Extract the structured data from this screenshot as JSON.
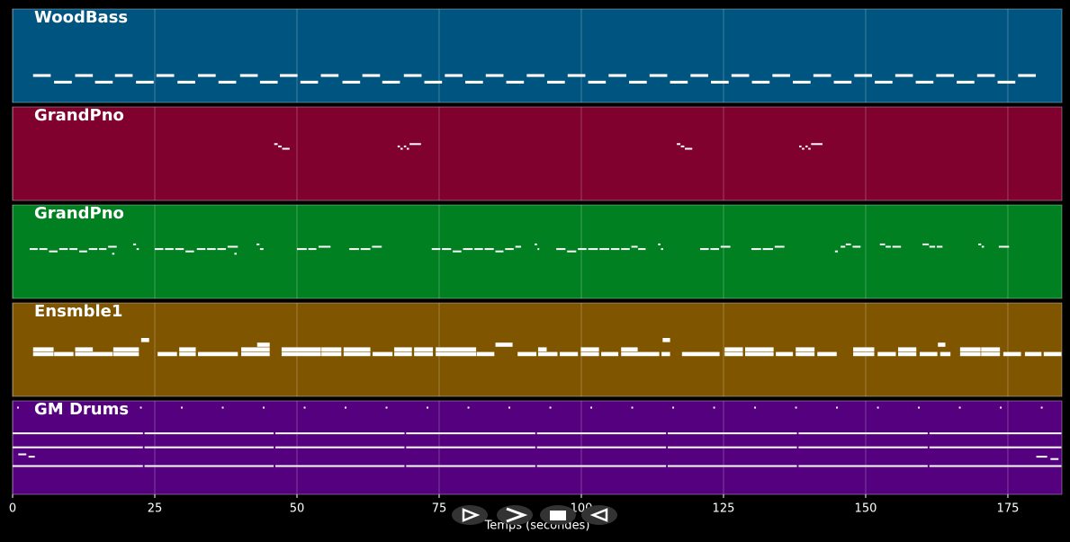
{
  "chart_data": {
    "type": "pianoroll",
    "xlabel": "Temps (secondes)",
    "xlim": [
      0,
      184.5
    ],
    "xticks": [
      0,
      25,
      50,
      75,
      100,
      125,
      150,
      175
    ],
    "grid": true,
    "tracks": [
      {
        "name": "WoodBass",
        "color": "#005580",
        "ylim": [
          36,
          64
        ],
        "start": [
          3.6,
          7.3,
          11,
          14.5,
          18,
          21.7,
          25.3,
          29,
          32.6,
          36.2,
          40,
          43.5,
          47,
          50.6,
          54.2,
          58,
          61.5,
          65,
          68.8,
          72.4,
          76,
          79.6,
          83.2,
          86.8,
          90.4,
          94,
          97.6,
          101.2,
          104.8,
          108.4,
          112,
          115.6,
          119.2,
          122.8,
          126.4,
          130,
          133.6,
          137.2,
          140.8,
          144.4,
          148,
          151.6,
          155.2,
          158.8,
          162.4,
          166,
          169.6,
          173.2,
          176.8
        ],
        "end": [
          6.8,
          10.5,
          14.2,
          17.7,
          21.2,
          24.9,
          28.5,
          32.2,
          35.8,
          39.4,
          43.2,
          46.7,
          50.2,
          53.8,
          57.4,
          61.2,
          64.7,
          68.2,
          72,
          75.6,
          79.2,
          82.8,
          86.4,
          90,
          93.6,
          97.2,
          100.8,
          104.4,
          108,
          111.6,
          115.2,
          118.8,
          122.4,
          126,
          129.6,
          133.2,
          136.8,
          140.4,
          144,
          147.6,
          151.2,
          154.8,
          158.4,
          162,
          165.6,
          169.2,
          172.8,
          176.4,
          180
        ],
        "pitch": [
          44,
          42,
          44,
          42,
          44,
          42,
          44,
          42,
          44,
          42,
          44,
          42,
          44,
          42,
          44,
          42,
          44,
          42,
          44,
          42,
          44,
          42,
          44,
          42,
          44,
          42,
          44,
          42,
          44,
          42,
          44,
          42,
          44,
          42,
          44,
          42,
          44,
          42,
          44,
          42,
          44,
          42,
          44,
          42,
          44,
          42,
          44,
          42,
          44
        ]
      },
      {
        "name": "GrandPno",
        "color": "#80002e",
        "ylim": [
          50,
          90
        ],
        "start": [
          46.0,
          46.7,
          47.4,
          67.7,
          68.2,
          68.8,
          69.3,
          69.8,
          116.8,
          117.5,
          118.2,
          138.3,
          138.8,
          139.4,
          139.9,
          140.4
        ],
        "end": [
          46.7,
          47.4,
          48.8,
          68.2,
          68.7,
          69.3,
          69.8,
          71.9,
          117.5,
          118.2,
          119.6,
          138.8,
          139.3,
          139.9,
          140.4,
          142.5
        ],
        "pitch": [
          74,
          73,
          72,
          73,
          72,
          73,
          72,
          74,
          74,
          73,
          72,
          73,
          72,
          73,
          72,
          74
        ]
      },
      {
        "name": "GrandPno",
        "color": "#008020",
        "ylim": [
          50,
          90
        ],
        "start": [
          3.0,
          4.7,
          6.4,
          8.2,
          10.0,
          11.7,
          13.4,
          15.2,
          16.8,
          17.5,
          21.2,
          21.8,
          25.0,
          26.8,
          28.6,
          30.4,
          32.4,
          34.2,
          36.0,
          37.8,
          39.0,
          42.9,
          43.5,
          50.0,
          52.0,
          53.8,
          59.2,
          61.2,
          63.2,
          73.7,
          75.5,
          77.4,
          79.2,
          81.2,
          83.0,
          84.9,
          86.6,
          88.4,
          91.8,
          92.3,
          95.6,
          97.5,
          99.4,
          101.2,
          103.2,
          105.2,
          107.0,
          108.8,
          110.0,
          113.5,
          114.0,
          120.9,
          122.7,
          124.5,
          129.9,
          131.9,
          134.0,
          144.6,
          145.6,
          146.5,
          147.7,
          152.5,
          153.5,
          154.7,
          160.0,
          161.2,
          162.5,
          169.8,
          170.4,
          173.4
        ],
        "end": [
          4.5,
          6.2,
          8.0,
          9.8,
          11.5,
          13.2,
          15.0,
          16.6,
          18.4,
          18.0,
          21.8,
          22.3,
          26.6,
          28.4,
          30.2,
          32.0,
          34.0,
          35.8,
          37.6,
          39.7,
          39.5,
          43.5,
          44.2,
          51.8,
          53.5,
          56.0,
          61.0,
          63.0,
          65.0,
          75.3,
          77.2,
          79.0,
          81.0,
          82.8,
          84.7,
          86.4,
          88.2,
          89.5,
          92.3,
          92.7,
          97.3,
          99.2,
          101.0,
          103.0,
          105.0,
          106.8,
          108.6,
          110.0,
          111.4,
          114.0,
          114.5,
          122.5,
          124.3,
          126.3,
          131.7,
          133.8,
          135.8,
          145.2,
          146.5,
          147.5,
          149.2,
          153.5,
          154.5,
          156.3,
          161.2,
          162.3,
          163.6,
          170.4,
          170.9,
          175.3
        ],
        "pitch": [
          71,
          71,
          70,
          71,
          71,
          70,
          71,
          71,
          72,
          69,
          73,
          71,
          71,
          71,
          71,
          70,
          71,
          71,
          71,
          72,
          69,
          73,
          71,
          71,
          71,
          72,
          71,
          71,
          72,
          71,
          71,
          70,
          71,
          71,
          71,
          70,
          71,
          72,
          73,
          71,
          71,
          70,
          71,
          71,
          71,
          71,
          71,
          72,
          71,
          73,
          71,
          71,
          71,
          72,
          71,
          71,
          72,
          70,
          72,
          73,
          72,
          73,
          72,
          72,
          73,
          72,
          72,
          73,
          72,
          72
        ]
      },
      {
        "name": "Ensmble1",
        "color": "#7f5500",
        "ylim": [
          40,
          60
        ],
        "start": [
          3.6,
          7.3,
          11,
          17.7,
          25.5,
          29.3,
          32.6,
          40.2,
          47.3,
          54.3,
          58.2,
          63.3,
          67.1,
          70.6,
          74.4,
          81.6,
          88.8,
          92.4,
          96.2,
          99.9,
          103.5,
          107,
          114.1,
          117.7,
          125.2,
          128.8,
          134.2,
          137.7,
          141.5,
          147.8,
          152.1,
          155.7,
          159.5,
          163.1,
          166.6,
          170.3,
          174.2,
          178,
          181.3,
          3.6,
          11,
          17.7,
          29.3,
          40.2,
          47.3,
          54.3,
          58.2,
          67.1,
          70.6,
          74.4,
          92.4,
          99.9,
          107,
          125.2,
          128.8,
          137.7,
          147.8,
          155.7,
          166.6,
          170.3,
          22.6,
          43,
          84.9,
          114.3,
          162.7
        ],
        "end": [
          7.3,
          10.8,
          17.7,
          22.3,
          29,
          32.3,
          39.7,
          45.3,
          54.3,
          57.9,
          63,
          66.9,
          70.3,
          74,
          81.6,
          84.8,
          92.2,
          95.9,
          99.5,
          103.2,
          106.6,
          113.8,
          115.7,
          124.4,
          128.5,
          133.9,
          137.3,
          141.1,
          145,
          151.6,
          155.4,
          159,
          162.7,
          165,
          170.3,
          173.7,
          177.4,
          181,
          184.5,
          7.3,
          14.2,
          22.3,
          32.3,
          45.3,
          54.3,
          57.9,
          63,
          70.3,
          74,
          81.6,
          94,
          103.2,
          110,
          128.5,
          133.9,
          141.1,
          151.6,
          159,
          170.3,
          173.7,
          24.1,
          45.3,
          88,
          115.7,
          164.1
        ],
        "pitch": [
          49,
          49,
          49,
          49,
          49,
          49,
          49,
          49,
          49,
          49,
          49,
          49,
          49,
          49,
          49,
          49,
          49,
          49,
          49,
          49,
          49,
          49,
          49,
          49,
          49,
          49,
          49,
          49,
          49,
          49,
          49,
          49,
          49,
          49,
          49,
          49,
          49,
          49,
          49,
          50,
          50,
          50,
          50,
          50,
          50,
          50,
          50,
          50,
          50,
          50,
          50,
          50,
          50,
          50,
          50,
          50,
          50,
          50,
          50,
          50,
          52,
          51,
          51,
          52,
          51
        ]
      },
      {
        "name": "GM Drums",
        "color": "#55007f",
        "ylim": [
          30,
          70
        ],
        "start": [
          0.8,
          8,
          15.2,
          22.4,
          29.6,
          36.8,
          44,
          51.2,
          58.4,
          65.6,
          72.8,
          80,
          87.2,
          94.4,
          101.6,
          108.8,
          116,
          123.2,
          130.4,
          137.6,
          144.8,
          152,
          159.2,
          166.4,
          173.6,
          180.8,
          0,
          23.2,
          46.2,
          69.2,
          92.2,
          115.2,
          138.2,
          161.2,
          0,
          23.2,
          46.2,
          69.2,
          92.2,
          115.2,
          138.2,
          161.2,
          0,
          23.2,
          46.2,
          69.2,
          92.2,
          115.2,
          138.2,
          161.2,
          1,
          2.8,
          180,
          182.5
        ],
        "end": [
          1.2,
          8.4,
          15.6,
          22.8,
          30,
          37.2,
          44.4,
          51.6,
          58.8,
          66,
          73.2,
          80.4,
          87.6,
          94.8,
          102,
          109.2,
          116.4,
          123.6,
          130.8,
          138,
          145.2,
          152.4,
          159.6,
          166.8,
          174,
          181.2,
          23,
          46,
          69,
          92,
          115,
          138,
          161,
          184.5,
          23,
          46,
          69,
          92,
          115,
          138,
          161,
          184.5,
          23,
          46,
          69,
          92,
          115,
          138,
          161,
          184.5,
          2.5,
          4,
          182,
          184
        ],
        "pitch": [
          67,
          67,
          67,
          67,
          67,
          67,
          67,
          67,
          67,
          67,
          67,
          67,
          67,
          67,
          67,
          67,
          67,
          67,
          67,
          67,
          67,
          67,
          67,
          67,
          67,
          67,
          56,
          56,
          56,
          56,
          56,
          56,
          56,
          56,
          50,
          50,
          50,
          50,
          50,
          50,
          50,
          50,
          42,
          42,
          42,
          42,
          42,
          42,
          42,
          42,
          47,
          46,
          46,
          45
        ]
      }
    ]
  }
}
